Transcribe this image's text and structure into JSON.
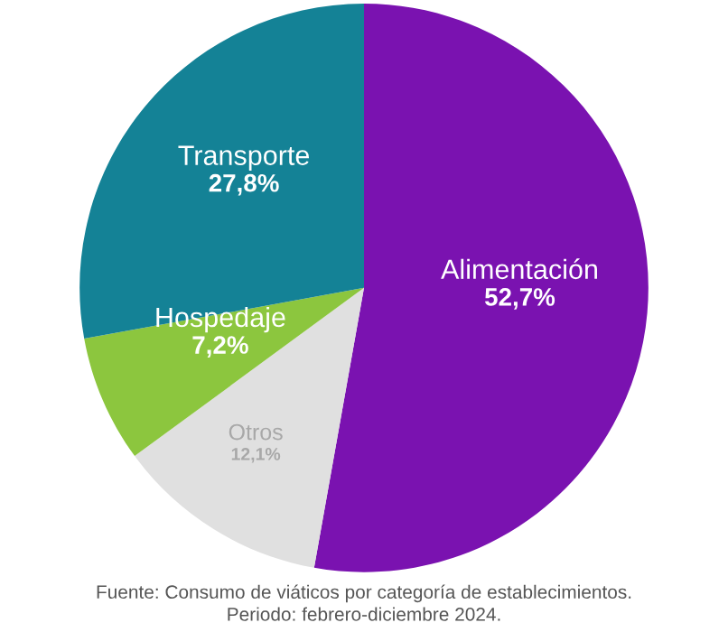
{
  "chart_data": {
    "type": "pie",
    "categories": [
      "Alimentación",
      "Otros",
      "Hospedaje",
      "Transporte"
    ],
    "values": [
      52.7,
      12.1,
      7.2,
      27.8
    ],
    "value_labels": [
      "52,7%",
      "12,1%",
      "7,2%",
      "27,8%"
    ],
    "colors": [
      "#7a12b0",
      "#e0e0e0",
      "#8cc63e",
      "#148296"
    ],
    "annotations": [
      "Fuente: Consumo de viáticos por categoría de establecimientos.\nPeriodo: febrero-diciembre 2024."
    ]
  }
}
